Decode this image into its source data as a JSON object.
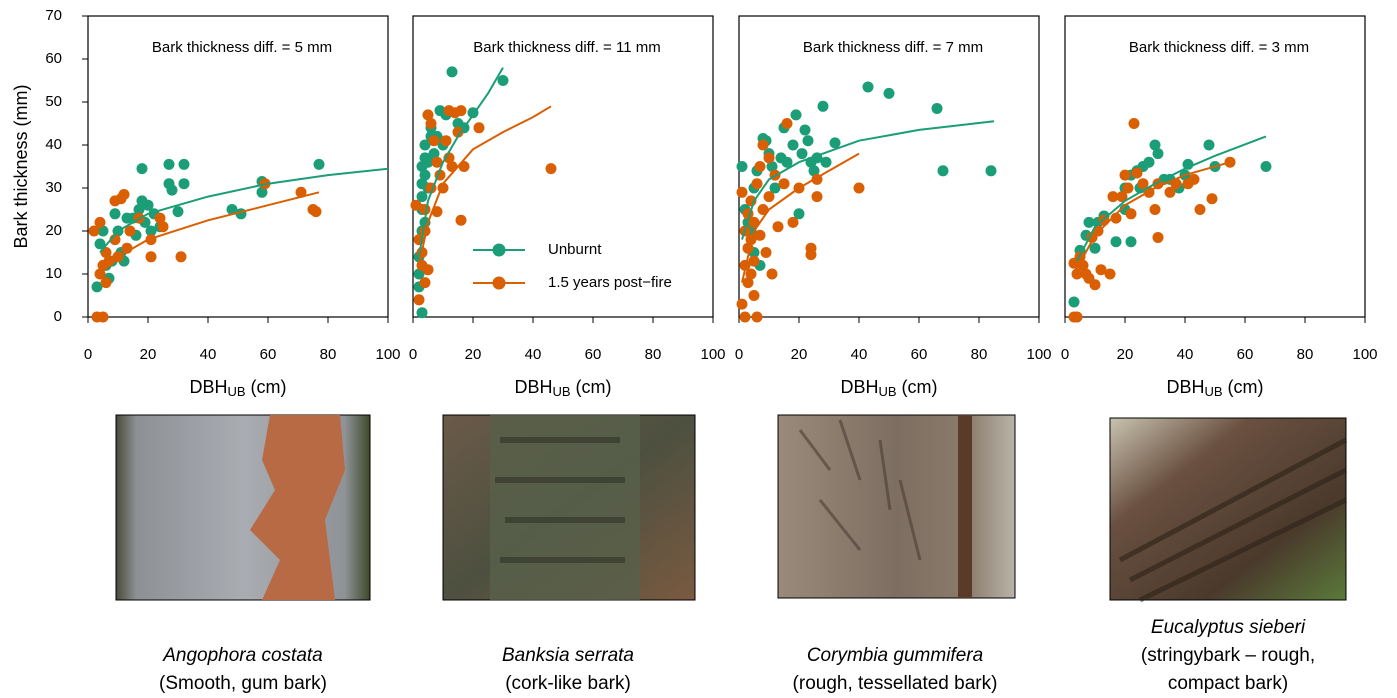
{
  "chart_data": [
    {
      "type": "scatter",
      "annotation": "Bark thickness diff. = 5 mm",
      "ylabel": "Bark thickness (mm)",
      "xlabel": "DBH",
      "xlabel_sub": "UB",
      "xlabel_unit": " (cm)",
      "xlim": [
        0,
        100
      ],
      "ylim": [
        0,
        70
      ],
      "xticks": [
        0,
        20,
        40,
        60,
        80,
        100
      ],
      "yticks": [
        0,
        10,
        20,
        30,
        40,
        50,
        60,
        70
      ],
      "series": [
        {
          "color": "#1b9e77",
          "x": [
            3,
            4,
            5,
            6,
            7,
            8,
            9,
            10,
            11,
            12,
            13,
            15,
            16,
            17,
            18,
            18,
            19,
            20,
            21,
            22,
            24,
            27,
            27,
            28,
            30,
            32,
            32,
            48,
            51,
            58,
            58,
            77
          ],
          "values": [
            7,
            17,
            20,
            12,
            9,
            13,
            24,
            20,
            15,
            13,
            23,
            23,
            19,
            25,
            34.5,
            27,
            22,
            26,
            20,
            24,
            21,
            35.5,
            31,
            29.5,
            24.5,
            35.5,
            31,
            25,
            24,
            31.5,
            29,
            35.5
          ],
          "fit_x": [
            4,
            10,
            20,
            40,
            60,
            80,
            100
          ],
          "fit_values": [
            15,
            20,
            24,
            28,
            31,
            33,
            34.5
          ]
        },
        {
          "color": "#d95f02",
          "x": [
            2,
            3,
            4,
            4,
            5,
            5,
            6,
            6,
            7,
            9,
            9,
            10,
            11,
            12,
            13,
            14,
            17,
            21,
            21,
            24,
            25,
            31,
            59,
            71,
            75,
            76
          ],
          "values": [
            20,
            0,
            22,
            10,
            0,
            12,
            8,
            15,
            13,
            18,
            27,
            14,
            27.5,
            28.5,
            16,
            20,
            23,
            18,
            14,
            23,
            21,
            14,
            31,
            29,
            25,
            24.5
          ],
          "fit_x": [
            4,
            10,
            20,
            40,
            60,
            77
          ],
          "fit_values": [
            10,
            14,
            18,
            22.5,
            26,
            29
          ]
        }
      ]
    },
    {
      "type": "scatter",
      "annotation": "Bark thickness diff. = 11 mm",
      "xlabel": "DBH",
      "xlabel_sub": "UB",
      "xlabel_unit": " (cm)",
      "xlim": [
        0,
        100
      ],
      "ylim": [
        0,
        70
      ],
      "xticks": [
        0,
        20,
        40,
        60,
        80,
        100
      ],
      "legend": "lower-right",
      "series": [
        {
          "name": "Unburnt",
          "color": "#1b9e77",
          "x": [
            2,
            2,
            2,
            3,
            3,
            3,
            3,
            3,
            3,
            4,
            4,
            4,
            4,
            5,
            5,
            6,
            6,
            7,
            8,
            9,
            10,
            11,
            13,
            15,
            17,
            20,
            30
          ],
          "values": [
            7,
            10,
            14,
            1,
            20,
            25,
            28,
            31,
            35,
            33,
            37,
            40,
            22,
            30,
            36,
            42,
            44,
            38,
            42,
            48,
            40,
            47,
            57,
            45,
            44,
            47.5,
            55
          ],
          "fit_x": [
            2,
            5,
            10,
            15,
            20,
            25,
            30
          ],
          "fit_values": [
            14,
            27,
            36,
            42,
            47,
            52,
            58
          ]
        },
        {
          "name": "1.5 years post−fire",
          "color": "#d95f02",
          "x": [
            1,
            2,
            2,
            3,
            3,
            4,
            4,
            4,
            5,
            5,
            6,
            6,
            7,
            8,
            8,
            9,
            10,
            11,
            12,
            12,
            13,
            14,
            15,
            16,
            16,
            17,
            22,
            46
          ],
          "values": [
            26,
            18,
            4,
            12,
            15,
            8,
            20,
            25,
            47,
            11,
            45,
            30,
            41,
            24.5,
            36,
            33,
            30,
            41,
            48,
            37,
            35,
            47.5,
            43,
            22.5,
            48,
            35,
            44,
            34.5
          ],
          "fit_x": [
            2,
            5,
            10,
            20,
            30,
            40,
            46
          ],
          "fit_values": [
            12,
            22,
            31,
            39,
            43,
            46.5,
            49
          ]
        }
      ]
    },
    {
      "type": "scatter",
      "annotation": "Bark thickness diff. = 7 mm",
      "xlabel": "DBH",
      "xlabel_sub": "UB",
      "xlabel_unit": " (cm)",
      "xlim": [
        0,
        100
      ],
      "ylim": [
        0,
        70
      ],
      "xticks": [
        0,
        20,
        40,
        60,
        80,
        100
      ],
      "series": [
        {
          "color": "#1b9e77",
          "x": [
            1,
            2,
            3,
            4,
            5,
            5,
            6,
            7,
            8,
            9,
            10,
            11,
            12,
            14,
            15,
            16,
            18,
            19,
            20,
            21,
            22,
            23,
            24,
            25,
            26,
            28,
            29,
            32,
            43,
            50,
            66,
            68,
            84
          ],
          "values": [
            35,
            25,
            22,
            20,
            30,
            15,
            34,
            12,
            41.5,
            41,
            38,
            35,
            30,
            37,
            44,
            36,
            40,
            47,
            24,
            38,
            43.5,
            41,
            36,
            34,
            37,
            49,
            36,
            40.5,
            53.5,
            52,
            48.5,
            34,
            34
          ],
          "fit_x": [
            1,
            5,
            10,
            20,
            40,
            60,
            85
          ],
          "fit_values": [
            18,
            27,
            32,
            36,
            41,
            43.5,
            45.5
          ]
        },
        {
          "color": "#d95f02",
          "x": [
            1,
            1,
            2,
            2,
            2,
            3,
            3,
            3,
            4,
            4,
            4,
            5,
            5,
            5,
            6,
            6,
            7,
            7,
            8,
            8,
            9,
            10,
            10,
            11,
            12,
            13,
            15,
            16,
            18,
            20,
            24,
            24,
            26,
            26,
            40
          ],
          "values": [
            29,
            3,
            0,
            12,
            20,
            8,
            16,
            24,
            10,
            18,
            27,
            5,
            13,
            22,
            0,
            31,
            19,
            35,
            25,
            40,
            15,
            28,
            37,
            10,
            33,
            21,
            31,
            45,
            22,
            30,
            16,
            14.5,
            32,
            28,
            30
          ],
          "fit_x": [
            1,
            5,
            10,
            20,
            30,
            40
          ],
          "fit_values": [
            8,
            20,
            25,
            30,
            34,
            38
          ]
        }
      ]
    },
    {
      "type": "scatter",
      "annotation": "Bark thickness diff. = 3 mm",
      "xlabel": "DBH",
      "xlabel_sub": "UB",
      "xlabel_unit": " (cm)",
      "xlim": [
        0,
        100
      ],
      "ylim": [
        0,
        70
      ],
      "xticks": [
        0,
        20,
        40,
        60,
        80,
        100
      ],
      "series": [
        {
          "color": "#1b9e77",
          "x": [
            3,
            5,
            7,
            8,
            10,
            11,
            13,
            17,
            20,
            20,
            22,
            22,
            24,
            25,
            26,
            28,
            30,
            31,
            33,
            35,
            38,
            40,
            41,
            48,
            50,
            67
          ],
          "values": [
            3.5,
            15.5,
            19,
            22,
            16,
            22,
            23.5,
            17.5,
            25,
            30,
            17.5,
            33,
            34,
            30,
            35,
            36,
            40,
            38,
            32,
            32,
            30,
            33,
            35.5,
            40,
            35,
            35
          ],
          "fit_x": [
            4,
            10,
            20,
            30,
            40,
            50,
            67
          ],
          "fit_values": [
            13,
            21,
            27,
            31,
            34.5,
            37.5,
            42
          ]
        },
        {
          "color": "#d95f02",
          "x": [
            3,
            3,
            4,
            4,
            5,
            6,
            7,
            8,
            9,
            10,
            11,
            12,
            13,
            15,
            16,
            17,
            19,
            20,
            21,
            22,
            23,
            24,
            26,
            28,
            30,
            31,
            31,
            35,
            37,
            41,
            43,
            45,
            49,
            55
          ],
          "values": [
            12.5,
            0,
            0,
            10,
            14,
            12,
            10,
            9,
            18.5,
            7.5,
            20,
            11,
            22.5,
            10,
            28,
            23,
            28,
            33,
            30,
            24,
            45,
            33.5,
            31,
            29,
            25,
            18.5,
            31,
            29,
            31,
            31,
            32,
            25,
            27.5,
            36
          ],
          "fit_x": [
            3,
            10,
            20,
            30,
            40,
            55
          ],
          "fit_values": [
            10,
            19,
            26,
            30,
            33,
            36
          ]
        }
      ]
    }
  ],
  "photos": [
    {
      "species": "Angophora costata",
      "description": [
        "(Smooth, gum bark)"
      ]
    },
    {
      "species": "Banksia serrata",
      "description": [
        "(cork-like bark)"
      ]
    },
    {
      "species": "Corymbia gummifera",
      "description": [
        "(rough, tessellated bark)"
      ]
    },
    {
      "species": "Eucalyptus sieberi",
      "description": [
        "(stringybark – rough,",
        "compact bark)"
      ]
    }
  ]
}
